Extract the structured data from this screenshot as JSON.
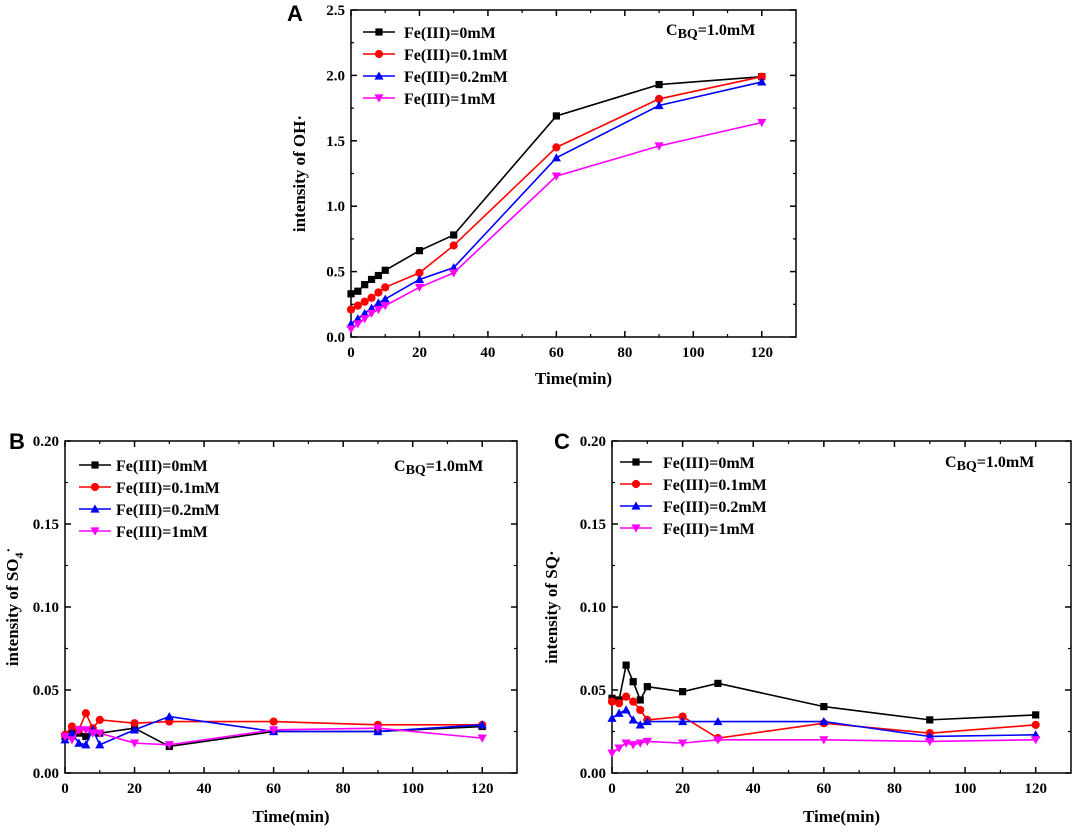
{
  "chart_data": [
    {
      "type": "line",
      "panel_label": "A",
      "xlabel": "Time(min)",
      "ylabel": "intensity of OH·",
      "annotation": "C",
      "annotation_sub": "BQ",
      "annotation_tail": "=1.0mM",
      "xlim": [
        0,
        130
      ],
      "ylim": [
        0,
        2.5
      ],
      "xticks": [
        "0",
        "20",
        "40",
        "60",
        "80",
        "100",
        "120"
      ],
      "yticks": [
        "0.0",
        "0.5",
        "1.0",
        "1.5",
        "2.0",
        "2.5"
      ],
      "legend_position": "top-left",
      "series": [
        {
          "name": "Fe(III)=0mM",
          "color": "#000000",
          "marker": "square",
          "x": [
            0,
            2,
            4,
            6,
            8,
            10,
            20,
            30,
            60,
            90,
            120
          ],
          "y": [
            0.33,
            0.35,
            0.4,
            0.44,
            0.47,
            0.51,
            0.66,
            0.78,
            1.69,
            1.93,
            1.99
          ]
        },
        {
          "name": "Fe(III)=0.1mM",
          "color": "#ff0000",
          "marker": "circle",
          "x": [
            0,
            2,
            4,
            6,
            8,
            10,
            20,
            30,
            60,
            90,
            120
          ],
          "y": [
            0.21,
            0.24,
            0.27,
            0.3,
            0.34,
            0.38,
            0.49,
            0.7,
            1.45,
            1.82,
            1.99
          ]
        },
        {
          "name": "Fe(III)=0.2mM",
          "color": "#0000ff",
          "marker": "triangle-up",
          "x": [
            0,
            2,
            4,
            6,
            8,
            10,
            20,
            30,
            60,
            90,
            120
          ],
          "y": [
            0.1,
            0.14,
            0.18,
            0.22,
            0.26,
            0.29,
            0.44,
            0.53,
            1.37,
            1.77,
            1.95
          ]
        },
        {
          "name": "Fe(III)=1mM",
          "color": "#ff00ff",
          "marker": "triangle-down",
          "x": [
            0,
            2,
            4,
            6,
            8,
            10,
            20,
            30,
            60,
            90,
            120
          ],
          "y": [
            0.06,
            0.1,
            0.14,
            0.18,
            0.21,
            0.24,
            0.38,
            0.49,
            1.23,
            1.46,
            1.64
          ]
        }
      ]
    },
    {
      "type": "line",
      "panel_label": "B",
      "xlabel": "Time(min)",
      "ylabel": "intensity of SO",
      "ylabel_sub": "4",
      "ylabel_sup": "·",
      "annotation": "C",
      "annotation_sub": "BQ",
      "annotation_tail": "=1.0mM",
      "xlim": [
        0,
        130
      ],
      "ylim": [
        0,
        0.2
      ],
      "xticks": [
        "0",
        "20",
        "40",
        "60",
        "80",
        "100",
        "120"
      ],
      "yticks": [
        "0.00",
        "0.05",
        "0.10",
        "0.15",
        "0.20"
      ],
      "legend_position": "top-left",
      "series": [
        {
          "name": "Fe(III)=0mM",
          "color": "#000000",
          "marker": "square",
          "x": [
            0,
            2,
            4,
            6,
            8,
            10,
            20,
            30,
            60,
            90,
            120
          ],
          "y": [
            0.022,
            0.025,
            0.024,
            0.022,
            0.026,
            0.024,
            0.027,
            0.016,
            0.025,
            0.025,
            0.028
          ]
        },
        {
          "name": "Fe(III)=0.1mM",
          "color": "#ff0000",
          "marker": "circle",
          "x": [
            0,
            2,
            4,
            6,
            8,
            10,
            20,
            30,
            60,
            90,
            120
          ],
          "y": [
            0.023,
            0.028,
            0.026,
            0.036,
            0.027,
            0.032,
            0.03,
            0.031,
            0.031,
            0.029,
            0.029
          ]
        },
        {
          "name": "Fe(III)=0.2mM",
          "color": "#0000ff",
          "marker": "triangle-up",
          "x": [
            0,
            2,
            4,
            6,
            8,
            10,
            20,
            30,
            60,
            90,
            120
          ],
          "y": [
            0.02,
            0.024,
            0.018,
            0.017,
            0.026,
            0.017,
            0.026,
            0.034,
            0.025,
            0.025,
            0.029
          ]
        },
        {
          "name": "Fe(III)=1mM",
          "color": "#ff00ff",
          "marker": "triangle-down",
          "x": [
            0,
            2,
            4,
            6,
            8,
            10,
            20,
            30,
            60,
            90,
            120
          ],
          "y": [
            0.022,
            0.02,
            0.026,
            0.026,
            0.024,
            0.024,
            0.018,
            0.017,
            0.026,
            0.027,
            0.021
          ]
        }
      ]
    },
    {
      "type": "line",
      "panel_label": "C",
      "xlabel": "Time(min)",
      "ylabel": "intensity of SQ·",
      "annotation": "C",
      "annotation_sub": "BQ",
      "annotation_tail": "=1.0mM",
      "xlim": [
        0,
        130
      ],
      "ylim": [
        0,
        0.2
      ],
      "xticks": [
        "0",
        "20",
        "40",
        "60",
        "80",
        "100",
        "120"
      ],
      "yticks": [
        "0.00",
        "0.05",
        "0.10",
        "0.15",
        "0.20"
      ],
      "legend_position": "top-left",
      "series": [
        {
          "name": "Fe(III)=0mM",
          "color": "#000000",
          "marker": "square",
          "x": [
            0,
            2,
            4,
            6,
            8,
            10,
            20,
            30,
            60,
            90,
            120
          ],
          "y": [
            0.045,
            0.044,
            0.065,
            0.055,
            0.044,
            0.052,
            0.049,
            0.054,
            0.04,
            0.032,
            0.035
          ]
        },
        {
          "name": "Fe(III)=0.1mM",
          "color": "#ff0000",
          "marker": "circle",
          "x": [
            0,
            2,
            4,
            6,
            8,
            10,
            20,
            30,
            60,
            90,
            120
          ],
          "y": [
            0.043,
            0.042,
            0.046,
            0.043,
            0.038,
            0.032,
            0.034,
            0.021,
            0.03,
            0.024,
            0.029
          ]
        },
        {
          "name": "Fe(III)=0.2mM",
          "color": "#0000ff",
          "marker": "triangle-up",
          "x": [
            0,
            2,
            4,
            6,
            8,
            10,
            20,
            30,
            60,
            90,
            120
          ],
          "y": [
            0.033,
            0.036,
            0.038,
            0.032,
            0.029,
            0.031,
            0.031,
            0.031,
            0.031,
            0.022,
            0.023
          ]
        },
        {
          "name": "Fe(III)=1mM",
          "color": "#ff00ff",
          "marker": "triangle-down",
          "x": [
            0,
            2,
            4,
            6,
            8,
            10,
            20,
            30,
            60,
            90,
            120
          ],
          "y": [
            0.012,
            0.015,
            0.018,
            0.017,
            0.018,
            0.019,
            0.018,
            0.02,
            0.02,
            0.019,
            0.02
          ]
        }
      ]
    }
  ]
}
